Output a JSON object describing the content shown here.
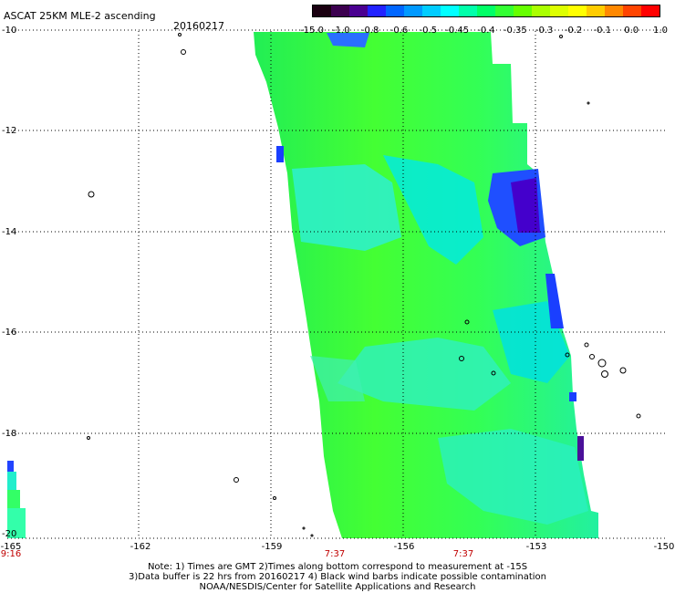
{
  "header": {
    "title": "ASCAT 25KM MLE-2 ascending",
    "date": "20160217"
  },
  "colorbar": {
    "colors": [
      "#1a0010",
      "#3c004f",
      "#4a0090",
      "#2222ff",
      "#0066ff",
      "#0099ff",
      "#00ccff",
      "#00ffff",
      "#00ffaa",
      "#00ff66",
      "#33ff33",
      "#66ff00",
      "#aaff00",
      "#ddff00",
      "#ffff00",
      "#ffcc00",
      "#ff8800",
      "#ff4400",
      "#ff0000"
    ],
    "labels": [
      "-15.0",
      "-1.0",
      "-0.8",
      "-0.6",
      "-0.5",
      "-0.45",
      "-0.4",
      "-0.35",
      "-0.3",
      "-0.2",
      "-0.1",
      "0.0",
      "1.0"
    ]
  },
  "axes": {
    "y_labels": [
      "-10",
      "-12",
      "-14",
      "-16",
      "-18",
      "-20"
    ],
    "x_labels": [
      "-165",
      "-162",
      "-159",
      "-156",
      "-153",
      "-150"
    ],
    "time_labels": [
      "9:16",
      "7:37",
      "7:37"
    ]
  },
  "notes": [
    "Note: 1) Times are GMT 2)Times along bottom correspond to measurement at -15S",
    "3)Data buffer is 22 hrs from 20160217 4) Black wind barbs indicate possible contamination",
    "NOAA/NESDIS/Center for Satellite Applications and Research"
  ]
}
